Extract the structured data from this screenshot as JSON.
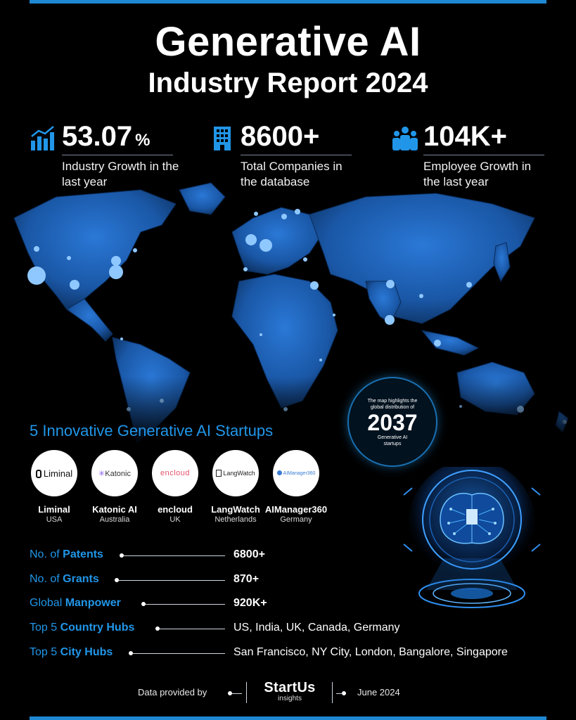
{
  "title": {
    "line1": "Generative AI",
    "line2": "Industry Report 2024"
  },
  "stats": [
    {
      "value": "53.07",
      "unit": "%",
      "label": "Industry Growth in the last year",
      "icon": "growth-chart-icon"
    },
    {
      "value": "8600+",
      "unit": "",
      "label": "Total Companies in the database",
      "icon": "building-icon"
    },
    {
      "value": "104K+",
      "unit": "",
      "label": "Employee Growth in the last year",
      "icon": "people-icon"
    }
  ],
  "map_badge": {
    "top_text": "The map highlights the global distribution of",
    "number": "2037",
    "bottom_text": "Generative AI startups"
  },
  "startups": {
    "heading": "5 Innovative Generative AI Startups",
    "items": [
      {
        "name": "Liminal",
        "country": "USA",
        "logo_text": "Liminal"
      },
      {
        "name": "Katonic AI",
        "country": "Australia",
        "logo_text": "Katonic"
      },
      {
        "name": "encloud",
        "country": "UK",
        "logo_text": "encloud"
      },
      {
        "name": "LangWatch",
        "country": "Netherlands",
        "logo_text": "LangWatch"
      },
      {
        "name": "AIManager360",
        "country": "Germany",
        "logo_text": "AIManager360"
      }
    ]
  },
  "metrics": [
    {
      "prefix": "No. of ",
      "emphasis": "Patents",
      "value": "6800+"
    },
    {
      "prefix": "No. of ",
      "emphasis": "Grants",
      "value": "870+"
    },
    {
      "prefix": "Global ",
      "emphasis": "Manpower",
      "value": "920K+"
    },
    {
      "prefix": "Top 5 ",
      "emphasis": "Country Hubs",
      "value": "US, India, UK, Canada, Germany"
    },
    {
      "prefix": "Top 5 ",
      "emphasis": "City Hubs",
      "value": "San Francisco, NY City, London, Bangalore, Singapore"
    }
  ],
  "footer": {
    "provided_by": "Data provided by",
    "brand_main": "StartUs",
    "brand_sub": "insights",
    "date": "June 2024"
  },
  "colors": {
    "accent": "#2196e8",
    "background": "#000000",
    "map": "#1a5caa"
  }
}
